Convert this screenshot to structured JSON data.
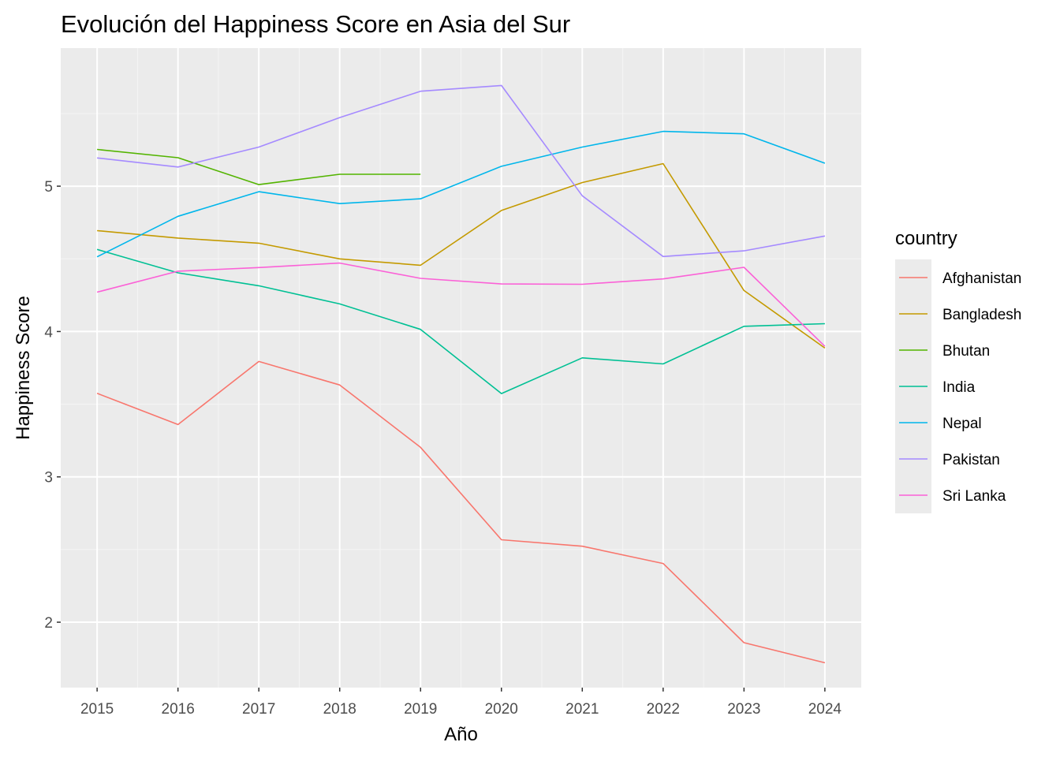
{
  "chart_data": {
    "type": "line",
    "title": "Evolución del Happiness Score en Asia del Sur",
    "xlabel": "Año",
    "ylabel": "Happiness Score",
    "x": [
      2015,
      2016,
      2017,
      2018,
      2019,
      2020,
      2021,
      2022,
      2023,
      2024
    ],
    "x_ticks": [
      "2015",
      "2016",
      "2017",
      "2018",
      "2019",
      "2020",
      "2021",
      "2022",
      "2023",
      "2024"
    ],
    "y_ticks": [
      "2",
      "3",
      "4",
      "5"
    ],
    "y_tick_values": [
      2,
      3,
      4,
      5
    ],
    "xlim": [
      2014.55,
      2024.45
    ],
    "ylim": [
      1.55,
      5.95
    ],
    "grid": true,
    "legend_title": "country",
    "legend_position": "right",
    "colors": {
      "panel_background": "#ebebeb",
      "grid_major": "#ffffff",
      "grid_minor": "#f5f5f5"
    },
    "series": [
      {
        "name": "Afghanistan",
        "color": "#F8766D",
        "values": [
          3.575,
          3.36,
          3.794,
          3.632,
          3.203,
          2.567,
          2.523,
          2.404,
          1.859,
          1.721
        ]
      },
      {
        "name": "Bangladesh",
        "color": "#C49A00",
        "values": [
          4.694,
          4.643,
          4.608,
          4.5,
          4.456,
          4.833,
          5.025,
          5.155,
          4.282,
          3.886
        ]
      },
      {
        "name": "Bhutan",
        "color": "#53B400",
        "values": [
          5.253,
          5.196,
          5.011,
          5.082,
          5.082,
          null,
          null,
          null,
          null,
          null
        ]
      },
      {
        "name": "India",
        "color": "#00C094",
        "values": [
          4.565,
          4.404,
          4.315,
          4.19,
          4.015,
          3.573,
          3.819,
          3.777,
          4.036,
          4.054
        ]
      },
      {
        "name": "Nepal",
        "color": "#00B6EB",
        "values": [
          4.514,
          4.793,
          4.962,
          4.88,
          4.913,
          5.137,
          5.269,
          5.377,
          5.36,
          5.158
        ]
      },
      {
        "name": "Pakistan",
        "color": "#A58AFF",
        "values": [
          5.194,
          5.132,
          5.269,
          5.472,
          5.653,
          5.693,
          4.934,
          4.516,
          4.555,
          4.657
        ]
      },
      {
        "name": "Sri Lanka",
        "color": "#FB61D7",
        "values": [
          4.271,
          4.415,
          4.44,
          4.471,
          4.366,
          4.327,
          4.325,
          4.362,
          4.442,
          3.898
        ]
      }
    ]
  }
}
